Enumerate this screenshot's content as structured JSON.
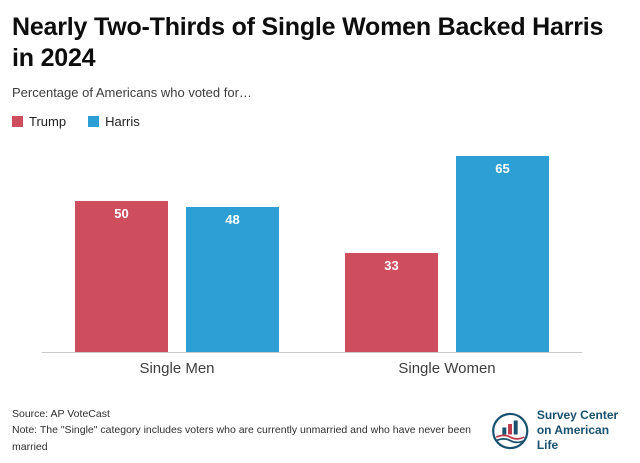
{
  "header": {
    "title": "Nearly Two-Thirds of Single Women Backed Harris in 2024",
    "subtitle": "Percentage of Americans who voted for…"
  },
  "chart_data": {
    "type": "bar",
    "categories": [
      "Single Men",
      "Single Women"
    ],
    "series": [
      {
        "name": "Trump",
        "color": "#cf4e5e",
        "values": [
          50,
          33
        ]
      },
      {
        "name": "Harris",
        "color": "#2e9fd4",
        "values": [
          48,
          65
        ]
      }
    ],
    "ylim": [
      0,
      70
    ],
    "grid": false,
    "value_labels": true,
    "legend_position": "top-left"
  },
  "footer": {
    "source": "Source: AP VoteCast",
    "note": "Note: The \"Single\" category includes voters who are currently unmarried and who have never been married",
    "logo_line1": "Survey Center",
    "logo_line2": "on American Life"
  },
  "colors": {
    "trump_red": "#cf4e5e",
    "harris_blue": "#2e9fd4",
    "logo_navy": "#19516f",
    "logo_red": "#c0394b"
  }
}
